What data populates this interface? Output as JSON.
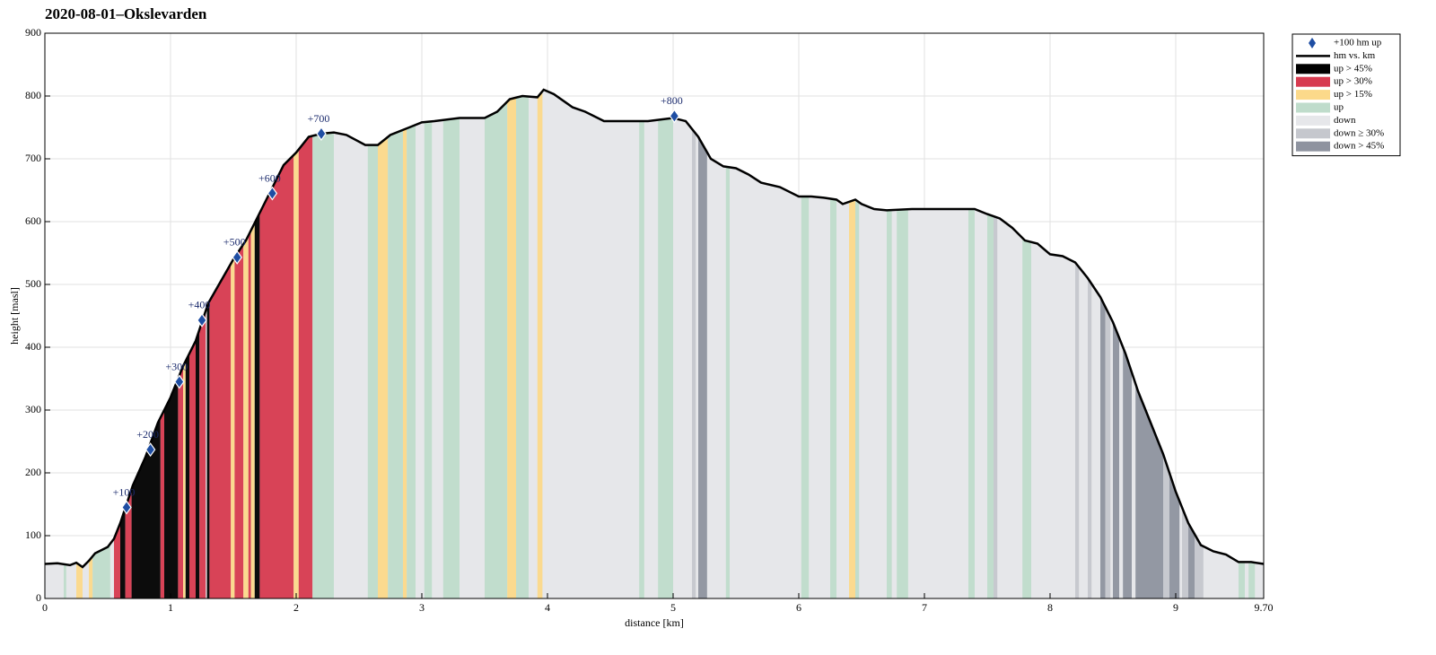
{
  "chart_data": {
    "type": "elevation-profile",
    "title": "2020-08-01–Okslevarden",
    "x_label": "distance [km]",
    "y_label": "height [masl]",
    "xlim": [
      0,
      9.7
    ],
    "ylim": [
      0,
      900
    ],
    "xticks": [
      0,
      1,
      2,
      3,
      4,
      5,
      6,
      7,
      8,
      9,
      {
        "value": 9.7,
        "label": "9.70"
      }
    ],
    "yticks": [
      0,
      100,
      200,
      300,
      400,
      500,
      600,
      700,
      800,
      900
    ],
    "grid": true,
    "line": {
      "name": "hm vs. km",
      "color": "#000000",
      "x": [
        0,
        0.1,
        0.2,
        0.25,
        0.3,
        0.35,
        0.4,
        0.5,
        0.55,
        0.6,
        0.65,
        0.7,
        0.8,
        0.9,
        1.0,
        1.1,
        1.2,
        1.3,
        1.4,
        1.5,
        1.6,
        1.7,
        1.8,
        1.9,
        2.0,
        2.1,
        2.2,
        2.3,
        2.4,
        2.55,
        2.65,
        2.75,
        2.9,
        3.0,
        3.1,
        3.3,
        3.5,
        3.6,
        3.7,
        3.8,
        3.92,
        3.97,
        4.05,
        4.2,
        4.3,
        4.45,
        4.8,
        5.0,
        5.1,
        5.2,
        5.3,
        5.4,
        5.5,
        5.6,
        5.7,
        5.85,
        6.0,
        6.1,
        6.2,
        6.3,
        6.35,
        6.45,
        6.5,
        6.6,
        6.7,
        6.9,
        7.1,
        7.4,
        7.5,
        7.6,
        7.7,
        7.8,
        7.9,
        8.0,
        8.1,
        8.2,
        8.3,
        8.4,
        8.5,
        8.6,
        8.7,
        8.8,
        8.9,
        9.0,
        9.1,
        9.2,
        9.3,
        9.4,
        9.5,
        9.6,
        9.7
      ],
      "values": [
        55,
        56,
        53,
        57,
        50,
        60,
        72,
        82,
        95,
        120,
        150,
        180,
        225,
        280,
        320,
        370,
        410,
        470,
        505,
        540,
        570,
        610,
        650,
        690,
        710,
        735,
        740,
        742,
        738,
        722,
        722,
        738,
        750,
        758,
        760,
        765,
        765,
        775,
        795,
        800,
        798,
        810,
        803,
        782,
        775,
        760,
        760,
        765,
        760,
        735,
        700,
        688,
        685,
        675,
        662,
        655,
        640,
        640,
        638,
        635,
        628,
        635,
        628,
        620,
        618,
        620,
        620,
        620,
        612,
        605,
        590,
        570,
        565,
        548,
        545,
        535,
        510,
        480,
        440,
        390,
        330,
        280,
        230,
        170,
        120,
        85,
        75,
        70,
        58,
        58,
        55
      ]
    },
    "markers": {
      "name": "+100 hm up",
      "color": "#1f4ea3",
      "points": [
        {
          "x": 0.65,
          "y": 145,
          "label": "+100"
        },
        {
          "x": 0.84,
          "y": 237,
          "label": "+200"
        },
        {
          "x": 1.07,
          "y": 345,
          "label": "+300"
        },
        {
          "x": 1.25,
          "y": 443,
          "label": "+400"
        },
        {
          "x": 1.53,
          "y": 543,
          "label": "+500"
        },
        {
          "x": 1.81,
          "y": 645,
          "label": "+600"
        },
        {
          "x": 2.2,
          "y": 740,
          "label": "+700"
        },
        {
          "x": 5.01,
          "y": 768,
          "label": "+800"
        }
      ]
    },
    "classes": [
      {
        "name": "up > 45%",
        "color": "#000000"
      },
      {
        "name": "up > 30%",
        "color": "#d73a4f"
      },
      {
        "name": "up > 15%",
        "color": "#fcd98a"
      },
      {
        "name": "up",
        "color": "#bfdccb"
      },
      {
        "name": "down",
        "color": "#e6e7ea"
      },
      {
        "name": "down ≥ 30%",
        "color": "#c5c7cd"
      },
      {
        "name": "down > 45%",
        "color": "#8e939f"
      }
    ],
    "bands": [
      [
        0.15,
        0.17,
        3
      ],
      [
        0.25,
        0.3,
        2
      ],
      [
        0.35,
        0.38,
        2
      ],
      [
        0.38,
        0.52,
        3
      ],
      [
        0.55,
        0.6,
        1
      ],
      [
        0.6,
        0.64,
        0
      ],
      [
        0.64,
        0.69,
        1
      ],
      [
        0.69,
        0.92,
        0
      ],
      [
        0.92,
        0.95,
        1
      ],
      [
        0.95,
        1.06,
        0
      ],
      [
        1.06,
        1.1,
        1
      ],
      [
        1.1,
        1.12,
        2
      ],
      [
        1.12,
        1.15,
        0
      ],
      [
        1.15,
        1.2,
        1
      ],
      [
        1.2,
        1.23,
        0
      ],
      [
        1.23,
        1.28,
        1
      ],
      [
        1.29,
        1.31,
        0
      ],
      [
        1.31,
        1.48,
        1
      ],
      [
        1.48,
        1.51,
        2
      ],
      [
        1.51,
        1.58,
        1
      ],
      [
        1.58,
        1.62,
        2
      ],
      [
        1.62,
        1.64,
        1
      ],
      [
        1.64,
        1.67,
        2
      ],
      [
        1.67,
        1.71,
        0
      ],
      [
        1.71,
        1.98,
        1
      ],
      [
        1.98,
        2.02,
        2
      ],
      [
        2.02,
        2.13,
        1
      ],
      [
        2.13,
        2.3,
        3
      ],
      [
        2.57,
        2.65,
        3
      ],
      [
        2.65,
        2.73,
        2
      ],
      [
        2.73,
        2.85,
        3
      ],
      [
        2.85,
        2.88,
        2
      ],
      [
        2.88,
        2.95,
        3
      ],
      [
        3.02,
        3.08,
        3
      ],
      [
        3.17,
        3.3,
        3
      ],
      [
        3.5,
        3.68,
        3
      ],
      [
        3.68,
        3.75,
        2
      ],
      [
        3.75,
        3.85,
        3
      ],
      [
        3.92,
        3.96,
        2
      ],
      [
        4.73,
        4.77,
        3
      ],
      [
        4.88,
        5.0,
        3
      ],
      [
        5.15,
        5.18,
        5
      ],
      [
        5.2,
        5.27,
        6
      ],
      [
        5.42,
        5.45,
        3
      ],
      [
        6.02,
        6.08,
        3
      ],
      [
        6.25,
        6.3,
        3
      ],
      [
        6.4,
        6.45,
        2
      ],
      [
        6.45,
        6.48,
        3
      ],
      [
        6.7,
        6.74,
        3
      ],
      [
        6.78,
        6.87,
        3
      ],
      [
        7.35,
        7.4,
        3
      ],
      [
        7.5,
        7.55,
        3
      ],
      [
        7.55,
        7.58,
        5
      ],
      [
        7.78,
        7.85,
        3
      ],
      [
        8.2,
        8.23,
        5
      ],
      [
        8.3,
        8.33,
        5
      ],
      [
        8.4,
        8.44,
        6
      ],
      [
        8.44,
        8.48,
        5
      ],
      [
        8.5,
        8.55,
        6
      ],
      [
        8.58,
        8.65,
        6
      ],
      [
        8.68,
        8.9,
        6
      ],
      [
        8.9,
        8.95,
        5
      ],
      [
        8.95,
        9.03,
        6
      ],
      [
        9.05,
        9.1,
        5
      ],
      [
        9.1,
        9.15,
        6
      ],
      [
        9.15,
        9.22,
        5
      ],
      [
        9.5,
        9.55,
        3
      ],
      [
        9.58,
        9.63,
        3
      ]
    ]
  }
}
